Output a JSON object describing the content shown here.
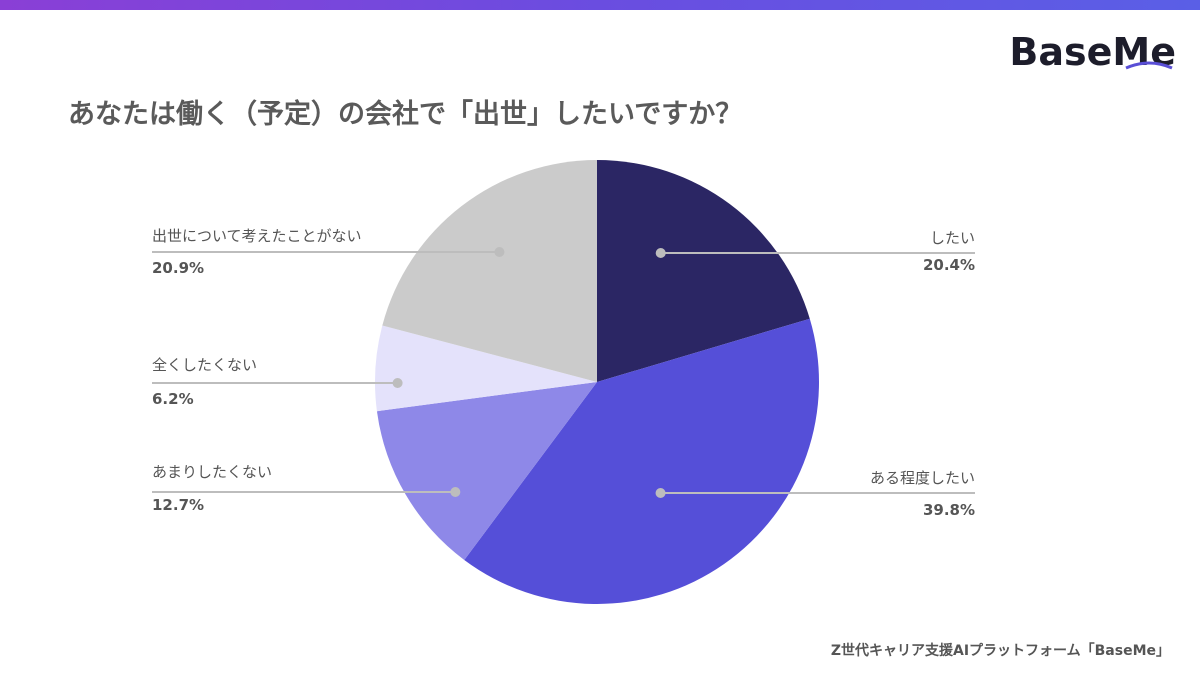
{
  "brand": {
    "logo": "BaseMe",
    "accent": "#5a4fd6"
  },
  "title": "あなたは働く（予定）の会社で「出世」したいですか？",
  "footer": "Z世代キャリア支援AIプラットフォーム「BaseMe」",
  "chart_data": {
    "type": "pie",
    "title": "あなたは働く（予定）の会社で「出世」したいですか？",
    "slices": [
      {
        "label": "したい",
        "value": 20.4,
        "value_label": "20.4%",
        "color": "#2b2664"
      },
      {
        "label": "ある程度したい",
        "value": 39.8,
        "value_label": "39.8%",
        "color": "#554fd8"
      },
      {
        "label": "あまりしたくない",
        "value": 12.7,
        "value_label": "12.7%",
        "color": "#8e88e8"
      },
      {
        "label": "全くしたくない",
        "value": 6.2,
        "value_label": "6.2%",
        "color": "#e4e2fb"
      },
      {
        "label": "出世について考えたことがない",
        "value": 20.9,
        "value_label": "20.9%",
        "color": "#cbcbcb"
      }
    ],
    "start_angle": "12 o'clock",
    "direction": "clockwise",
    "legend": "none (callout labels)"
  }
}
